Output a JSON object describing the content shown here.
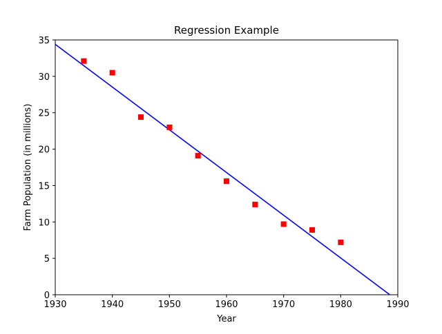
{
  "chart_data": {
    "type": "scatter",
    "title": "Regression Example",
    "xlabel": "Year",
    "ylabel": "Farm Population (in millions)",
    "xlim": [
      1930,
      1990
    ],
    "ylim": [
      0,
      35
    ],
    "xticks": [
      1930,
      1940,
      1950,
      1960,
      1970,
      1980,
      1990
    ],
    "yticks": [
      0,
      5,
      10,
      15,
      20,
      25,
      30,
      35
    ],
    "grid": false,
    "series": [
      {
        "kind": "scatter",
        "marker": "square",
        "color": "#ff0000",
        "x": [
          1935,
          1940,
          1945,
          1950,
          1955,
          1960,
          1965,
          1970,
          1975,
          1980
        ],
        "y": [
          32.1,
          30.5,
          24.4,
          23.0,
          19.1,
          15.6,
          12.4,
          9.7,
          8.9,
          7.2
        ]
      },
      {
        "kind": "line",
        "color": "#0000ff",
        "x": [
          1930,
          1988.6
        ],
        "y": [
          34.4,
          0
        ]
      }
    ]
  }
}
